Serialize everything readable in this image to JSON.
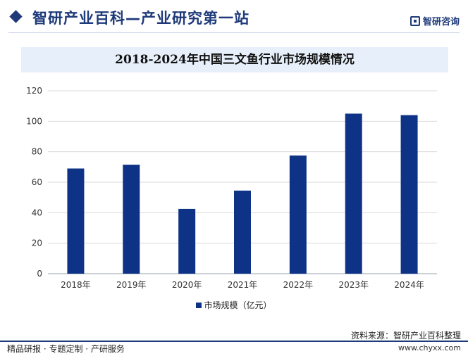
{
  "header": {
    "title": "智研产业百科—产业研究第一站",
    "logo_text": "智研咨询"
  },
  "chart_title": "2018-2024年中国三文鱼行业市场规模情况",
  "legend": {
    "label": "市场规模（亿元）"
  },
  "source": "资料来源：智研产业百科整理",
  "footer": {
    "left": "精品研报 · 专题定制 · 产研服务",
    "right": "www.chyxx.com"
  },
  "colors": {
    "bar": "#0e3386",
    "brand": "#1f3a7a",
    "title_bg": "#e7effa"
  },
  "chart_data": {
    "type": "bar",
    "title": "2018-2024年中国三文鱼行业市场规模情况",
    "categories": [
      "2018年",
      "2019年",
      "2020年",
      "2021年",
      "2022年",
      "2023年",
      "2024年"
    ],
    "series": [
      {
        "name": "市场规模（亿元）",
        "values": [
          69,
          71.5,
          42.5,
          54.5,
          77.5,
          105,
          104
        ]
      }
    ],
    "yticks": [
      0,
      20,
      40,
      60,
      80,
      100,
      120
    ],
    "ylim": [
      0,
      120
    ],
    "xlabel": "",
    "ylabel": "",
    "grid": true,
    "legend_position": "bottom"
  }
}
